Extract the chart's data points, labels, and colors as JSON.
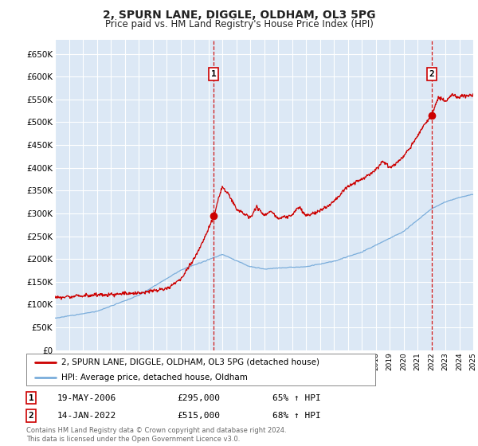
{
  "title": "2, SPURN LANE, DIGGLE, OLDHAM, OL3 5PG",
  "subtitle": "Price paid vs. HM Land Registry's House Price Index (HPI)",
  "plot_bg_color": "#dce8f5",
  "grid_color": "#ffffff",
  "yticks": [
    0,
    50000,
    100000,
    150000,
    200000,
    250000,
    300000,
    350000,
    400000,
    450000,
    500000,
    550000,
    600000,
    650000
  ],
  "ylim": [
    0,
    680000
  ],
  "property_color": "#cc0000",
  "hpi_color": "#7aaddb",
  "sale1_year": 2006.38,
  "sale1_price": 295000,
  "sale1_label": "1",
  "sale1_date": "19-MAY-2006",
  "sale1_pct": "65% ↑ HPI",
  "sale2_year": 2022.04,
  "sale2_price": 515000,
  "sale2_label": "2",
  "sale2_date": "14-JAN-2022",
  "sale2_pct": "68% ↑ HPI",
  "legend_entry1": "2, SPURN LANE, DIGGLE, OLDHAM, OL3 5PG (detached house)",
  "legend_entry2": "HPI: Average price, detached house, Oldham",
  "footer": "Contains HM Land Registry data © Crown copyright and database right 2024.\nThis data is licensed under the Open Government Licence v3.0."
}
